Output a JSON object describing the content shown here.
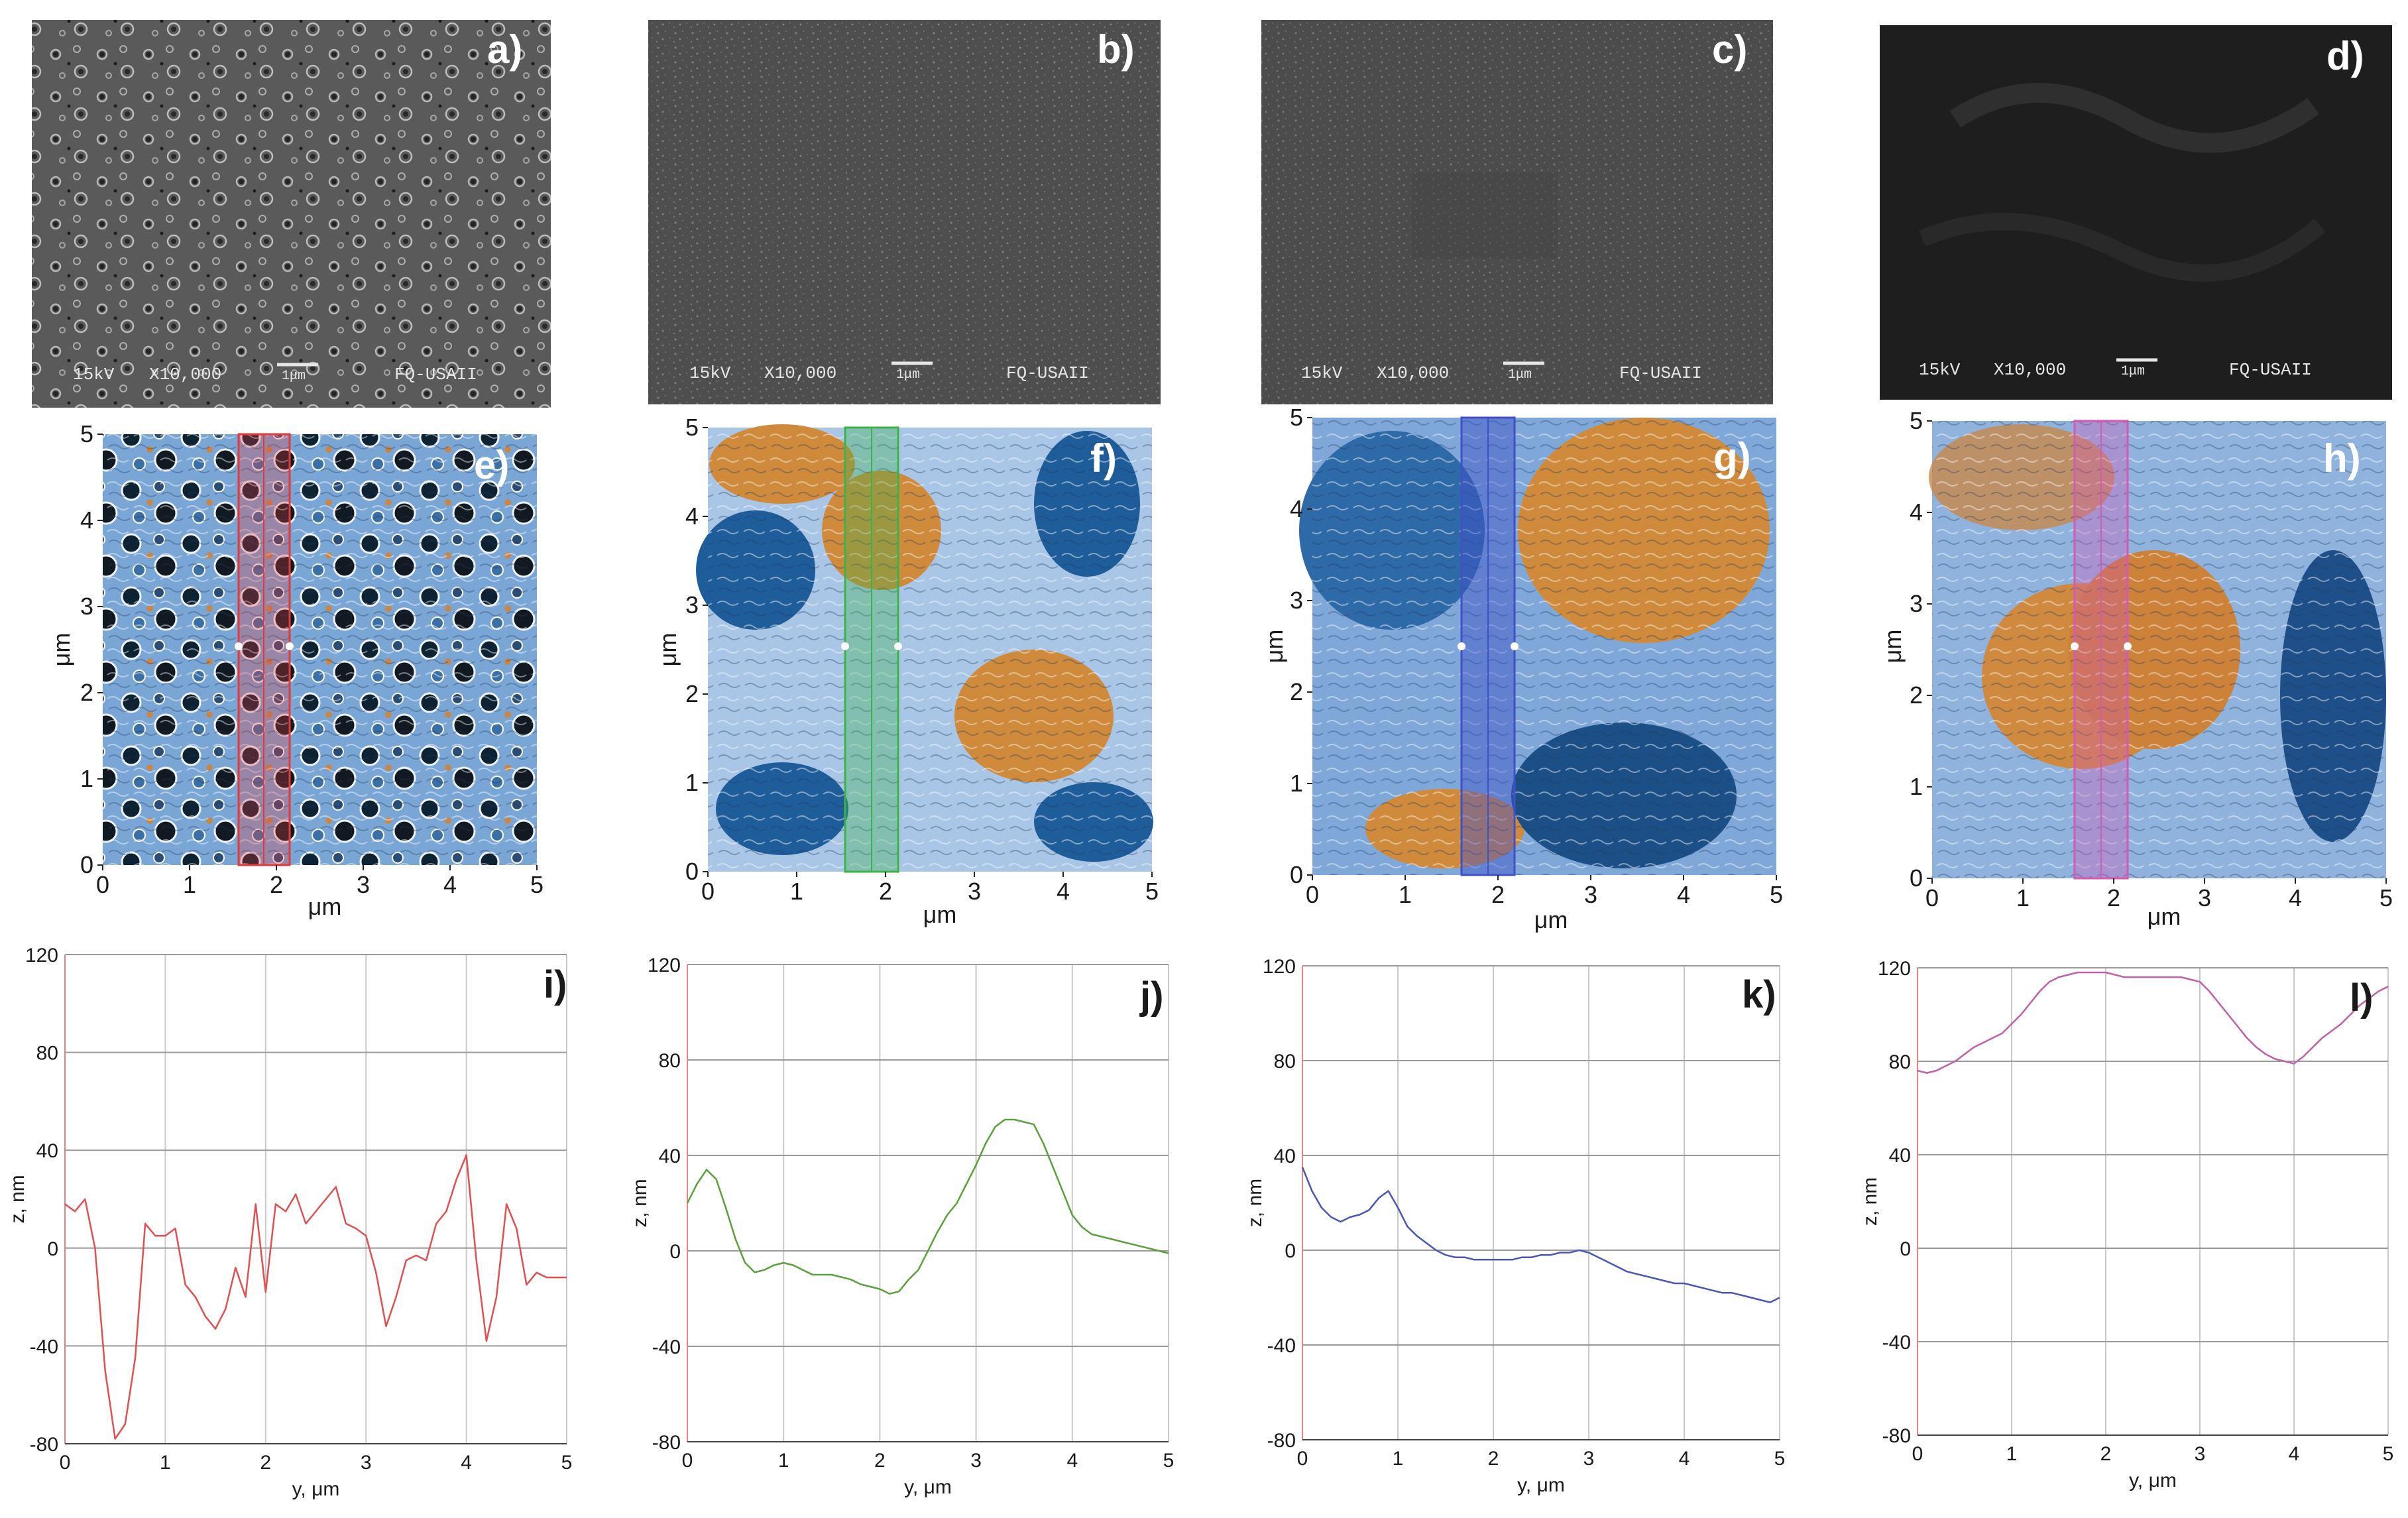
{
  "sem_panels": [
    {
      "label": "a)",
      "voltage": "15kV",
      "magnification": "X10,000",
      "scale": "1μm",
      "lab": "FQ-USAII"
    },
    {
      "label": "b)",
      "voltage": "15kV",
      "magnification": "X10,000",
      "scale": "1μm",
      "lab": "FQ-USAII"
    },
    {
      "label": "c)",
      "voltage": "15kV",
      "magnification": "X10,000",
      "scale": "1μm",
      "lab": "FQ-USAII"
    },
    {
      "label": "d)",
      "voltage": "15kV",
      "magnification": "X10,000",
      "scale": "1μm",
      "lab": "FQ-USAII"
    }
  ],
  "afm_panels": [
    {
      "label": "e)",
      "band_color": "#e23a3a"
    },
    {
      "label": "f)",
      "band_color": "#3bb34a"
    },
    {
      "label": "g)",
      "band_color": "#4050c8"
    },
    {
      "label": "h)",
      "band_color": "#d25ab4"
    }
  ],
  "afm_axes": {
    "xlabel": "μm",
    "ylabel": "μm",
    "xticks": [
      "0",
      "1",
      "2",
      "3",
      "4",
      "5"
    ],
    "yticks": [
      "0",
      "1",
      "2",
      "3",
      "4",
      "5"
    ]
  },
  "chart_data": [
    {
      "type": "line",
      "panel": "i)",
      "color": "#e05050",
      "xlabel": "y, μm",
      "ylabel": "z, nm",
      "xlim": [
        0,
        5
      ],
      "ylim": [
        -80,
        120
      ],
      "xticks": [
        "0",
        "1",
        "2",
        "3",
        "4",
        "5"
      ],
      "yticks": [
        "-80",
        "-40",
        "0",
        "40",
        "80",
        "120"
      ],
      "x": [
        0,
        0.1,
        0.2,
        0.3,
        0.4,
        0.5,
        0.6,
        0.7,
        0.8,
        0.9,
        1.0,
        1.1,
        1.2,
        1.3,
        1.4,
        1.5,
        1.6,
        1.7,
        1.8,
        1.9,
        2.0,
        2.1,
        2.2,
        2.3,
        2.4,
        2.5,
        2.6,
        2.7,
        2.8,
        2.9,
        3.0,
        3.1,
        3.2,
        3.3,
        3.4,
        3.5,
        3.6,
        3.7,
        3.8,
        3.9,
        4.0,
        4.1,
        4.2,
        4.3,
        4.4,
        4.5,
        4.6,
        4.7,
        4.8,
        4.9,
        5.0
      ],
      "y": [
        18,
        15,
        20,
        0,
        -50,
        -78,
        -72,
        -45,
        10,
        5,
        5,
        8,
        -15,
        -20,
        -28,
        -33,
        -25,
        -8,
        -20,
        18,
        -18,
        18,
        15,
        22,
        10,
        15,
        20,
        25,
        10,
        8,
        5,
        -10,
        -32,
        -20,
        -5,
        -3,
        -5,
        10,
        15,
        28,
        38,
        -5,
        -38,
        -20,
        18,
        8,
        -15,
        -10,
        -12,
        -12,
        -12
      ]
    },
    {
      "type": "line",
      "panel": "j)",
      "color": "#5aa03c",
      "xlabel": "y, μm",
      "ylabel": "z, nm",
      "xlim": [
        0,
        5
      ],
      "ylim": [
        -80,
        120
      ],
      "xticks": [
        "0",
        "1",
        "2",
        "3",
        "4",
        "5"
      ],
      "yticks": [
        "-80",
        "-40",
        "0",
        "40",
        "80",
        "120"
      ],
      "x": [
        0,
        0.1,
        0.2,
        0.3,
        0.4,
        0.5,
        0.6,
        0.7,
        0.8,
        0.9,
        1.0,
        1.1,
        1.2,
        1.3,
        1.4,
        1.5,
        1.6,
        1.7,
        1.8,
        1.9,
        2.0,
        2.1,
        2.2,
        2.3,
        2.4,
        2.5,
        2.6,
        2.7,
        2.8,
        2.9,
        3.0,
        3.1,
        3.2,
        3.3,
        3.4,
        3.5,
        3.6,
        3.7,
        3.8,
        3.9,
        4.0,
        4.1,
        4.2,
        4.3,
        4.4,
        4.5,
        4.6,
        4.7,
        4.8,
        4.9,
        5.0
      ],
      "y": [
        20,
        28,
        34,
        30,
        18,
        5,
        -5,
        -9,
        -8,
        -6,
        -5,
        -6,
        -8,
        -10,
        -10,
        -10,
        -11,
        -12,
        -14,
        -15,
        -16,
        -18,
        -17,
        -12,
        -8,
        0,
        8,
        15,
        20,
        28,
        36,
        45,
        52,
        55,
        55,
        54,
        53,
        45,
        35,
        25,
        15,
        10,
        7,
        6,
        5,
        4,
        3,
        2,
        1,
        0,
        -1
      ]
    },
    {
      "type": "line",
      "panel": "k)",
      "color": "#4a55b8",
      "xlabel": "y, μm",
      "ylabel": "z, nm",
      "xlim": [
        0,
        5
      ],
      "ylim": [
        -80,
        120
      ],
      "xticks": [
        "0",
        "1",
        "2",
        "3",
        "4",
        "5"
      ],
      "yticks": [
        "-80",
        "-40",
        "0",
        "40",
        "80",
        "120"
      ],
      "x": [
        0,
        0.1,
        0.2,
        0.3,
        0.4,
        0.5,
        0.6,
        0.7,
        0.8,
        0.9,
        1.0,
        1.1,
        1.2,
        1.3,
        1.4,
        1.5,
        1.6,
        1.7,
        1.8,
        1.9,
        2.0,
        2.1,
        2.2,
        2.3,
        2.4,
        2.5,
        2.6,
        2.7,
        2.8,
        2.9,
        3.0,
        3.1,
        3.2,
        3.3,
        3.4,
        3.5,
        3.6,
        3.7,
        3.8,
        3.9,
        4.0,
        4.1,
        4.2,
        4.3,
        4.4,
        4.5,
        4.6,
        4.7,
        4.8,
        4.9,
        5.0
      ],
      "y": [
        35,
        25,
        18,
        14,
        12,
        14,
        15,
        17,
        22,
        25,
        18,
        10,
        6,
        3,
        0,
        -2,
        -3,
        -3,
        -4,
        -4,
        -4,
        -4,
        -4,
        -3,
        -3,
        -2,
        -2,
        -1,
        -1,
        0,
        -1,
        -3,
        -5,
        -7,
        -9,
        -10,
        -11,
        -12,
        -13,
        -14,
        -14,
        -15,
        -16,
        -17,
        -18,
        -18,
        -19,
        -20,
        -21,
        -22,
        -20
      ]
    },
    {
      "type": "line",
      "panel": "l)",
      "color": "#c060a8",
      "xlabel": "y, μm",
      "ylabel": "z, nm",
      "xlim": [
        0,
        5
      ],
      "ylim": [
        -80,
        120
      ],
      "xticks": [
        "0",
        "1",
        "2",
        "3",
        "4",
        "5"
      ],
      "yticks": [
        "-80",
        "-40",
        "0",
        "40",
        "80",
        "120"
      ],
      "x": [
        0,
        0.1,
        0.2,
        0.3,
        0.4,
        0.5,
        0.6,
        0.7,
        0.8,
        0.9,
        1.0,
        1.1,
        1.2,
        1.3,
        1.4,
        1.5,
        1.6,
        1.7,
        1.8,
        1.9,
        2.0,
        2.1,
        2.2,
        2.3,
        2.4,
        2.5,
        2.6,
        2.7,
        2.8,
        2.9,
        3.0,
        3.1,
        3.2,
        3.3,
        3.4,
        3.5,
        3.6,
        3.7,
        3.8,
        3.9,
        4.0,
        4.1,
        4.2,
        4.3,
        4.4,
        4.5,
        4.6,
        4.7,
        4.8,
        4.9,
        5.0
      ],
      "y": [
        76,
        75,
        76,
        78,
        80,
        83,
        86,
        88,
        90,
        92,
        96,
        100,
        105,
        110,
        114,
        116,
        117,
        118,
        118,
        118,
        118,
        117,
        116,
        116,
        116,
        116,
        116,
        116,
        116,
        115,
        114,
        110,
        105,
        100,
        95,
        90,
        86,
        83,
        81,
        80,
        79,
        82,
        86,
        90,
        93,
        96,
        100,
        104,
        107,
        110,
        112
      ]
    }
  ]
}
